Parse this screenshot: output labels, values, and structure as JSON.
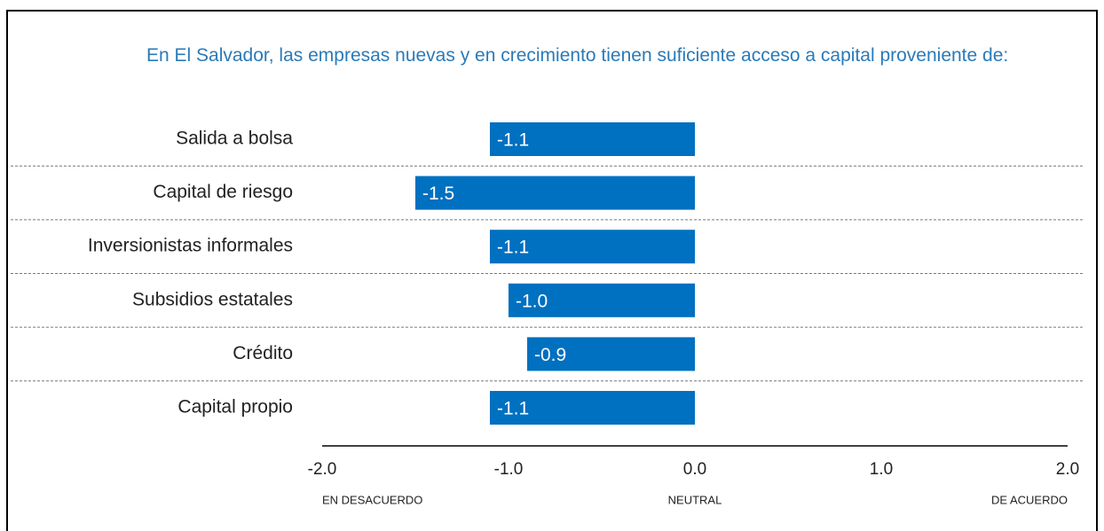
{
  "chart_data": {
    "type": "hbar",
    "title": "En El Salvador, las empresas nuevas y en crecimiento tienen suficiente acceso a capital proveniente de:",
    "categories": [
      "Salida a bolsa",
      "Capital de riesgo",
      "Inversionistas informales",
      "Subsidios estatales",
      "Crédito",
      "Capital propio"
    ],
    "values": [
      -1.1,
      -1.5,
      -1.1,
      -1.0,
      -0.9,
      -1.1
    ],
    "value_labels": [
      "-1.1",
      "-1.5",
      "-1.1",
      "-1.0",
      "-0.9",
      "-1.1"
    ],
    "color": "#0070c0",
    "xlim": [
      -2,
      2
    ],
    "xticks": [
      {
        "value": -2,
        "label": "-2.0"
      },
      {
        "value": -1,
        "label": "-1.0"
      },
      {
        "value": 0,
        "label": "0.0"
      },
      {
        "value": 1,
        "label": "1.0"
      },
      {
        "value": 2,
        "label": "2.0"
      }
    ],
    "axis_annotations": [
      {
        "value": -2,
        "label": "EN DESACUERDO"
      },
      {
        "value": 0,
        "label": "NEUTRAL"
      },
      {
        "value": 2,
        "label": "DE ACUERDO"
      }
    ]
  }
}
